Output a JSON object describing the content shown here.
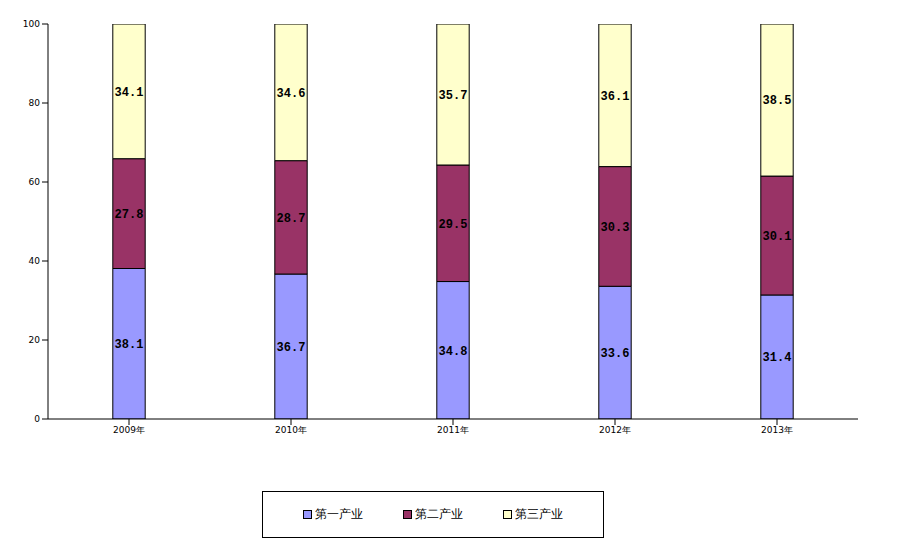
{
  "chart_data": {
    "type": "bar",
    "categories": [
      "2009年",
      "2010年",
      "2011年",
      "2012年",
      "2013年"
    ],
    "series": [
      {
        "name": "第一产业",
        "color": "#9999ff",
        "values": [
          38.1,
          36.7,
          34.8,
          33.6,
          31.4
        ]
      },
      {
        "name": "第二产业",
        "color": "#993366",
        "values": [
          27.8,
          28.7,
          29.5,
          30.3,
          30.1
        ]
      },
      {
        "name": "第三产业",
        "color": "#ffffcc",
        "values": [
          34.1,
          34.6,
          35.7,
          36.1,
          38.5
        ]
      }
    ],
    "ylim": [
      0,
      100
    ],
    "yticks": [
      0,
      20,
      40,
      60,
      80,
      100
    ],
    "stacked": true,
    "data_labels": true,
    "grid": false,
    "legend": "bottom"
  }
}
